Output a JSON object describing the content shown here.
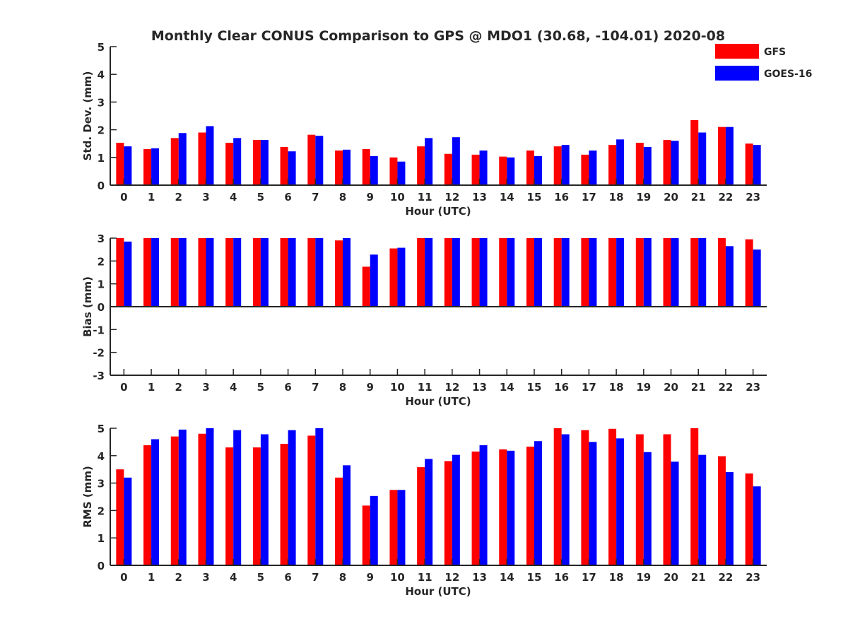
{
  "chart_data": {
    "title": "Monthly Clear CONUS Comparison to GPS @ MDO1 (30.68, -104.01) 2020-08",
    "legend": {
      "placement": "top-right",
      "entries": [
        {
          "name": "GFS",
          "color": "#ff0000"
        },
        {
          "name": "GOES-16",
          "color": "#0000ff"
        }
      ]
    },
    "categories": [
      "0",
      "1",
      "2",
      "3",
      "4",
      "5",
      "6",
      "7",
      "8",
      "9",
      "10",
      "11",
      "12",
      "13",
      "14",
      "15",
      "16",
      "17",
      "18",
      "19",
      "20",
      "21",
      "22",
      "23"
    ],
    "panels": [
      {
        "type": "bar",
        "ylabel": "Std. Dev. (mm)",
        "xlabel": "Hour (UTC)",
        "ylim": [
          0,
          5
        ],
        "yticks": [
          "0",
          "1",
          "2",
          "3",
          "4",
          "5"
        ],
        "grid": false,
        "series": [
          {
            "name": "GFS",
            "color": "#ff0000",
            "values": [
              1.53,
              1.3,
              1.7,
              1.9,
              1.53,
              1.63,
              1.38,
              1.82,
              1.25,
              1.3,
              1.0,
              1.4,
              1.13,
              1.1,
              1.03,
              1.25,
              1.4,
              1.1,
              1.45,
              1.53,
              1.63,
              2.35,
              2.1,
              1.5
            ]
          },
          {
            "name": "GOES-16",
            "color": "#0000ff",
            "values": [
              1.4,
              1.33,
              1.88,
              2.13,
              1.7,
              1.63,
              1.22,
              1.78,
              1.28,
              1.05,
              0.85,
              1.7,
              1.73,
              1.25,
              1.0,
              1.05,
              1.45,
              1.25,
              1.65,
              1.38,
              1.6,
              1.9,
              2.1,
              1.45
            ]
          }
        ]
      },
      {
        "type": "bar",
        "ylabel": "Bias (mm)",
        "xlabel": "Hour (UTC)",
        "ylim": [
          -3,
          3
        ],
        "yticks": [
          "-3",
          "-2",
          "-1",
          "0",
          "1",
          "2",
          "3"
        ],
        "grid": false,
        "series": [
          {
            "name": "GFS",
            "color": "#ff0000",
            "values": [
              3.0,
              3.0,
              3.0,
              3.0,
              3.0,
              3.0,
              3.0,
              3.0,
              2.9,
              1.75,
              2.55,
              3.0,
              3.0,
              3.0,
              3.0,
              3.0,
              3.0,
              3.0,
              3.0,
              3.0,
              3.0,
              3.0,
              3.0,
              2.95
            ]
          },
          {
            "name": "GOES-16",
            "color": "#0000ff",
            "values": [
              2.85,
              3.0,
              3.0,
              3.0,
              3.0,
              3.0,
              3.0,
              3.0,
              3.0,
              2.28,
              2.58,
              3.0,
              3.0,
              3.0,
              3.0,
              3.0,
              3.0,
              3.0,
              3.0,
              3.0,
              3.0,
              3.0,
              2.65,
              2.5
            ]
          }
        ]
      },
      {
        "type": "bar",
        "ylabel": "RMS (mm)",
        "xlabel": "Hour (UTC)",
        "ylim": [
          0,
          5
        ],
        "yticks": [
          "0",
          "1",
          "2",
          "3",
          "4",
          "5"
        ],
        "grid": false,
        "series": [
          {
            "name": "GFS",
            "color": "#ff0000",
            "values": [
              3.5,
              4.38,
              4.7,
              4.8,
              4.3,
              4.3,
              4.43,
              4.73,
              3.2,
              2.18,
              2.75,
              3.58,
              3.8,
              4.15,
              4.23,
              4.33,
              5.0,
              4.93,
              4.98,
              4.78,
              4.78,
              5.0,
              3.98,
              3.35
            ]
          },
          {
            "name": "GOES-16",
            "color": "#0000ff",
            "values": [
              3.2,
              4.6,
              4.95,
              5.0,
              4.93,
              4.78,
              4.93,
              5.0,
              3.65,
              2.53,
              2.75,
              3.88,
              4.03,
              4.38,
              4.18,
              4.53,
              4.78,
              4.5,
              4.63,
              4.13,
              3.78,
              4.03,
              3.4,
              2.88
            ]
          }
        ]
      }
    ]
  }
}
